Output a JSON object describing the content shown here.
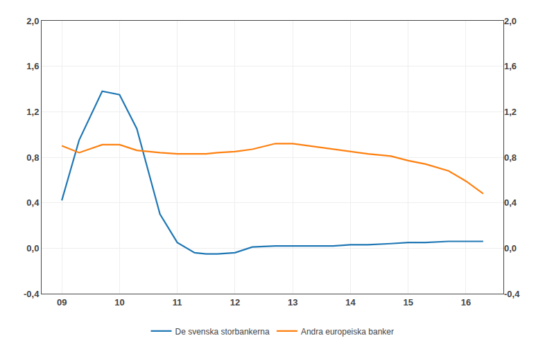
{
  "chart_data": {
    "type": "line",
    "x": [
      9.0,
      9.3,
      9.7,
      10.0,
      10.3,
      10.7,
      11.0,
      11.3,
      11.5,
      11.7,
      12.0,
      12.3,
      12.7,
      13.0,
      13.3,
      13.7,
      14.0,
      14.3,
      14.7,
      15.0,
      15.3,
      15.7,
      16.0,
      16.3
    ],
    "series": [
      {
        "name": "De svenska storbankerna",
        "values": [
          0.42,
          0.95,
          1.38,
          1.35,
          1.05,
          0.3,
          0.05,
          -0.04,
          -0.05,
          -0.05,
          -0.04,
          0.01,
          0.02,
          0.02,
          0.02,
          0.02,
          0.03,
          0.03,
          0.04,
          0.05,
          0.05,
          0.06,
          0.06,
          0.06
        ]
      },
      {
        "name": "Andra europeiska banker",
        "values": [
          0.9,
          0.84,
          0.91,
          0.91,
          0.86,
          0.84,
          0.83,
          0.83,
          0.83,
          0.84,
          0.85,
          0.87,
          0.92,
          0.92,
          0.9,
          0.87,
          0.85,
          0.83,
          0.81,
          0.77,
          0.74,
          0.68,
          0.59,
          0.48
        ]
      }
    ],
    "xlim": [
      8.65,
      16.65
    ],
    "xticks": [
      {
        "value": 9,
        "label": "09"
      },
      10,
      11,
      12,
      13,
      14,
      15,
      16
    ],
    "ylim": [
      -0.4,
      2.0
    ],
    "yticks": [
      {
        "value": -0.4,
        "label": "-0,4"
      },
      {
        "value": 0.0,
        "label": "0,0"
      },
      {
        "value": 0.4,
        "label": "0,4"
      },
      {
        "value": 0.8,
        "label": "0,8"
      },
      {
        "value": 1.2,
        "label": "1,2"
      },
      {
        "value": 1.6,
        "label": "1,6"
      },
      {
        "value": 2.0,
        "label": "2,0"
      }
    ],
    "y2lim": [
      -0.4,
      2.0
    ],
    "y2ticks": [
      {
        "value": -0.4,
        "label": "-0,4"
      },
      {
        "value": 0.0,
        "label": "0,0"
      },
      {
        "value": 0.4,
        "label": "0,4"
      },
      {
        "value": 0.8,
        "label": "0,8"
      },
      {
        "value": 1.2,
        "label": "1,2"
      },
      {
        "value": 1.6,
        "label": "1,6"
      },
      {
        "value": 2.0,
        "label": "2,0"
      }
    ],
    "grid": true,
    "legend": "lower center"
  }
}
